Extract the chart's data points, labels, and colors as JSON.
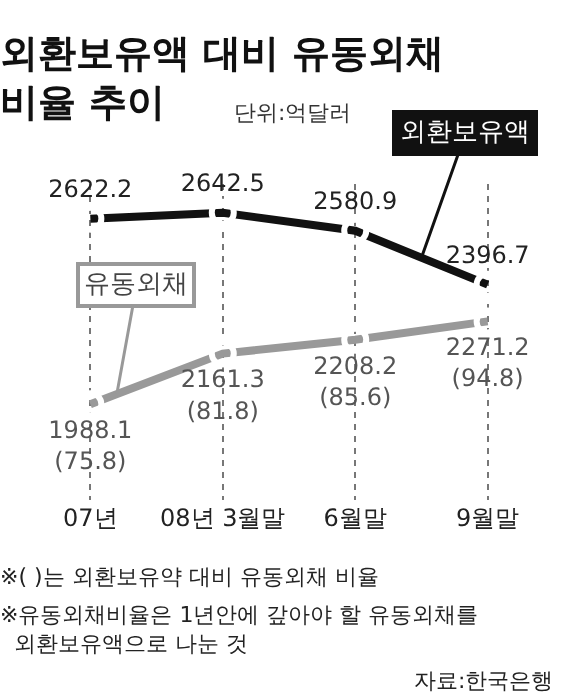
{
  "chart_data": {
    "type": "line",
    "title": "외환보유액 대비 유동외채\n비율 추이",
    "subtitle": "단위:억달러",
    "categories": [
      "07년",
      "08년 3월말",
      "6월말",
      "9월말"
    ],
    "series": [
      {
        "name": "외환보유액",
        "color": "#111111",
        "values": [
          2622.2,
          2642.5,
          2580.9,
          2396.7
        ],
        "value_labels": [
          "2622.2",
          "2642.5",
          "2580.9",
          "2396.7"
        ]
      },
      {
        "name": "유동외채",
        "color": "#999999",
        "values": [
          1988.1,
          2161.3,
          2208.2,
          2271.2
        ],
        "value_labels": [
          "1988.1\n(75.8)",
          "2161.3\n(81.8)",
          "2208.2\n(85.6)",
          "2271.2\n(94.8)"
        ]
      }
    ],
    "annotations": [
      "※( )는 외환보유약 대비 유동외채 비율",
      "※유동외채비율은 1년안에 갚아야 할 유동외채를\n  외환보유액으로 나눈 것",
      "자료:한국은행"
    ],
    "grid": "x",
    "marker": "circle",
    "line_style": "solid",
    "legend": false,
    "tick_labels": "x"
  }
}
